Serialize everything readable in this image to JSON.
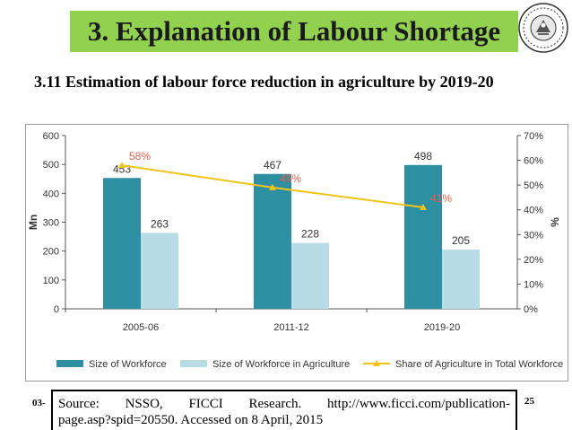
{
  "header": {
    "title": "3. Explanation of Labour Shortage",
    "subtitle": "3.11 Estimation of labour force reduction in agriculture by 2019-20",
    "footer_left": "03-",
    "footer_right": "25"
  },
  "source": {
    "words": [
      "Source:",
      "NSSO,",
      "FICCI",
      "Research.",
      "http://www.ficci.com/publication-"
    ],
    "line2": "page.asp?spid=20550. Accessed on 8 April, 2015"
  },
  "colors": {
    "banner": "#92d050",
    "workforce": "#2e8fa3",
    "agriculture": "#b8dce6",
    "share_line": "#f0c419",
    "share_label": "#e3604a"
  },
  "chart_data": {
    "type": "bar",
    "categories": [
      "2005-06",
      "2011-12",
      "2019-20"
    ],
    "series": [
      {
        "name": "Size of Workforce",
        "type": "bar",
        "axis": "left",
        "values": [
          453,
          467,
          498
        ],
        "labels": [
          "453",
          "467",
          "498"
        ]
      },
      {
        "name": "Size of Workforce in Agriculture",
        "type": "bar",
        "axis": "left",
        "values": [
          263,
          228,
          205
        ],
        "labels": [
          "263",
          "228",
          "205"
        ]
      },
      {
        "name": "Share of Agriculture in Total Workforce",
        "type": "line",
        "axis": "right",
        "values": [
          58,
          49,
          41
        ],
        "labels": [
          "58%",
          "49%",
          "41%"
        ]
      }
    ],
    "ylabel": "Mn",
    "y2label": "%",
    "ylim": [
      0,
      600
    ],
    "y2lim": [
      0,
      70
    ],
    "yticks": [
      "0",
      "100",
      "200",
      "300",
      "400",
      "500",
      "600"
    ],
    "y2ticks": [
      "0%",
      "10%",
      "20%",
      "30%",
      "40%",
      "50%",
      "60%",
      "70%"
    ],
    "legend_position": "bottom",
    "grid": false
  }
}
